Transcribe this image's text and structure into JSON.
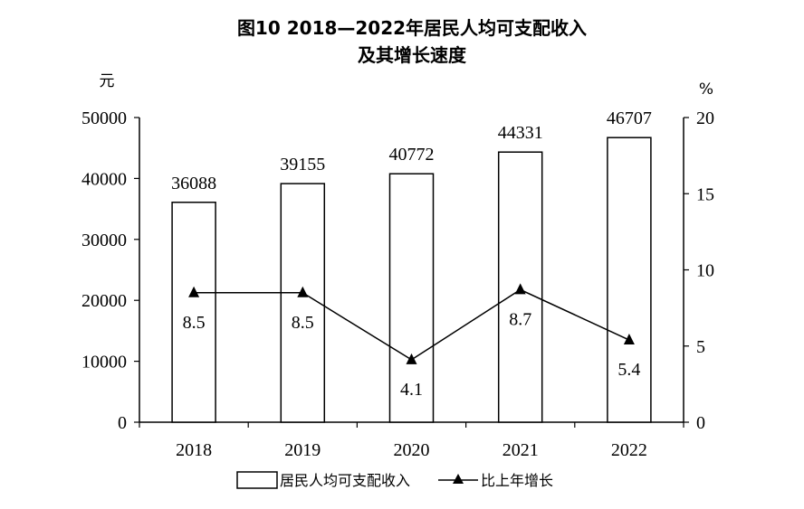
{
  "chart_data": {
    "type": "bar",
    "title": "图10  2018—2022年居民人均可支配收入",
    "subtitle": "及其增长速度",
    "categories": [
      "2018",
      "2019",
      "2020",
      "2021",
      "2022"
    ],
    "series": [
      {
        "name": "居民人均可支配收入",
        "type": "bar",
        "axis": "left",
        "values": [
          36088,
          39155,
          40772,
          44331,
          46707
        ]
      },
      {
        "name": "比上年增长",
        "type": "line",
        "axis": "right",
        "values": [
          8.5,
          8.5,
          4.1,
          8.7,
          5.4
        ]
      }
    ],
    "left_axis": {
      "unit": "元",
      "ylim": [
        0,
        50000
      ],
      "ticks": [
        "0",
        "10000",
        "20000",
        "30000",
        "40000",
        "50000"
      ]
    },
    "right_axis": {
      "unit": "%",
      "ylim": [
        0,
        20
      ],
      "ticks": [
        "0",
        "5",
        "10",
        "15",
        "20"
      ]
    },
    "bar_labels": [
      "36088",
      "39155",
      "40772",
      "44331",
      "46707"
    ],
    "line_labels": [
      "8.5",
      "8.5",
      "4.1",
      "8.7",
      "5.4"
    ],
    "grid": false,
    "legend_position": "bottom"
  },
  "colors": {
    "bar_fill": "#ffffff",
    "stroke": "#000000"
  }
}
